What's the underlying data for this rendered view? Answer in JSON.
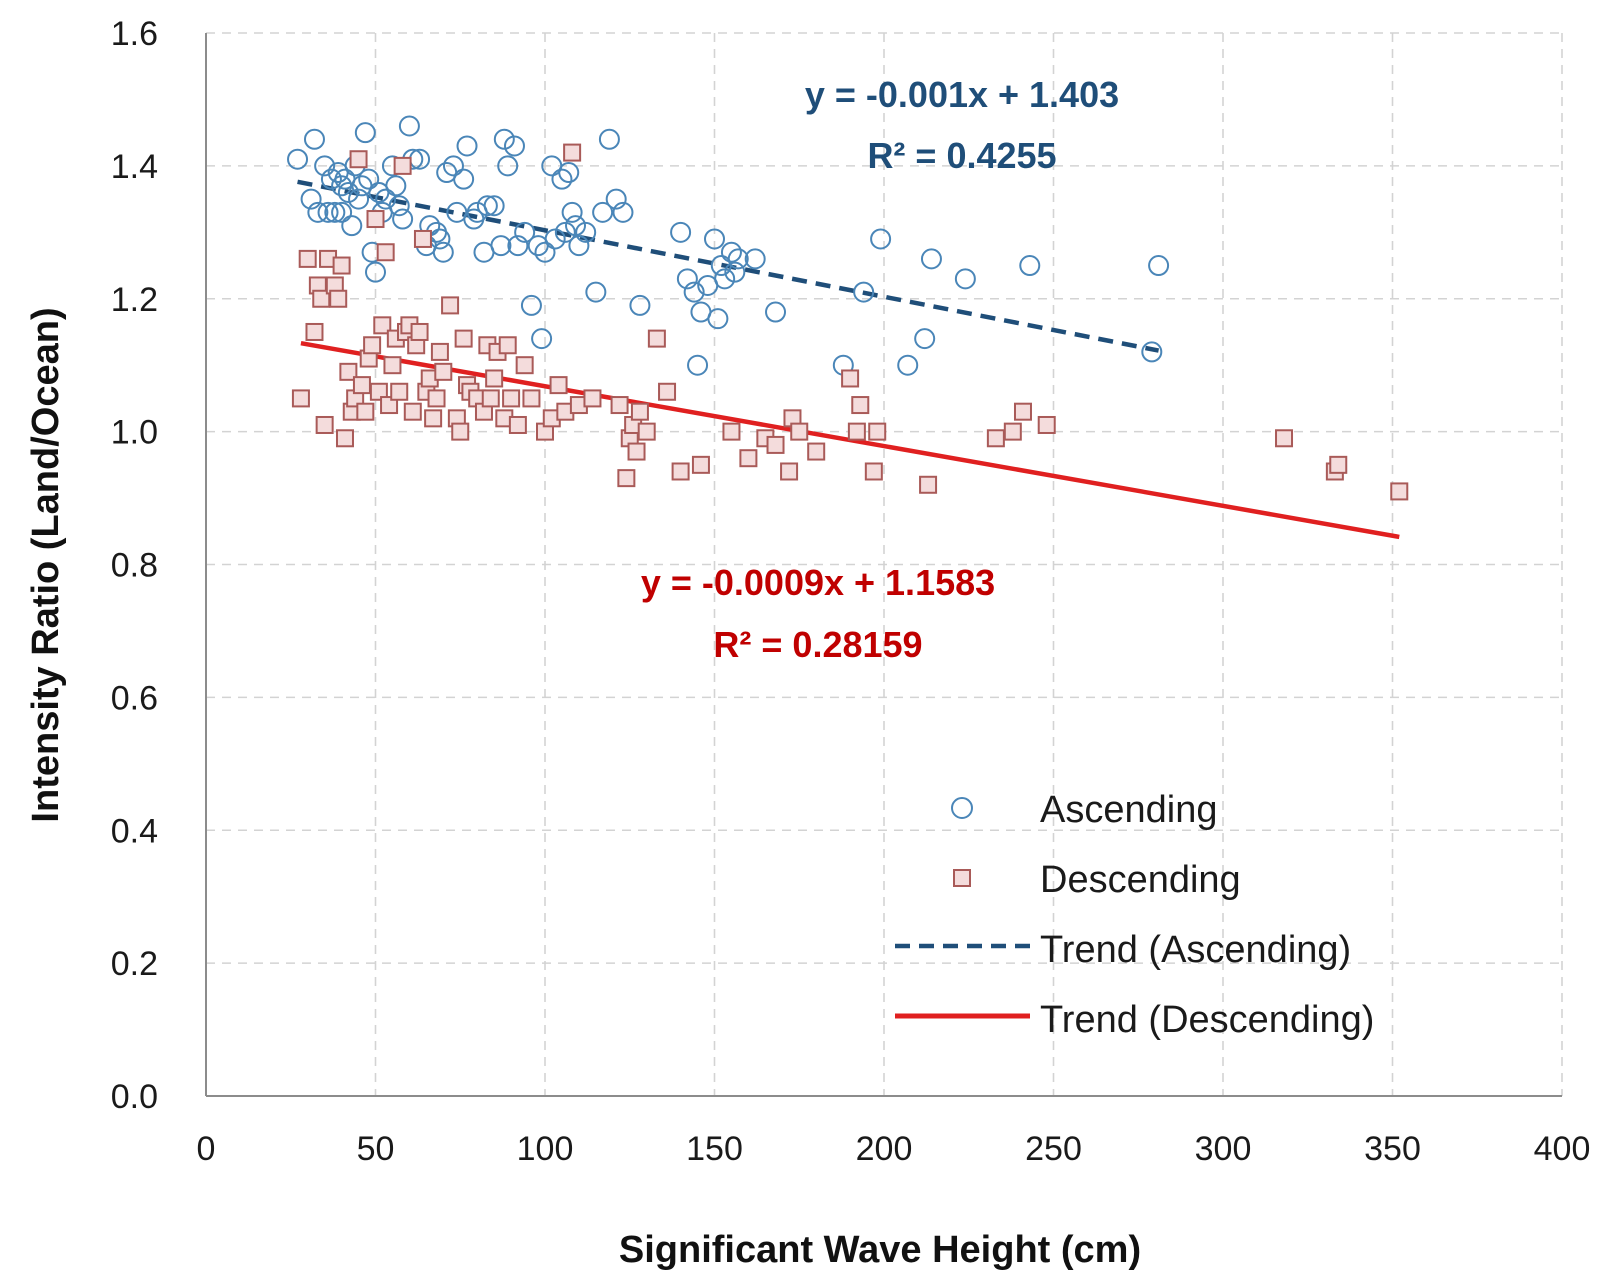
{
  "chart_data": {
    "type": "scatter",
    "title": "",
    "xlabel": "Significant Wave Height (cm)",
    "ylabel": "Intensity Ratio (Land/Ocean)",
    "xlim": [
      0,
      400
    ],
    "ylim": [
      0,
      1.6
    ],
    "xticks": [
      0,
      50,
      100,
      150,
      200,
      250,
      300,
      350,
      400
    ],
    "yticks": [
      0.0,
      0.2,
      0.4,
      0.6,
      0.8,
      1.0,
      1.2,
      1.4,
      1.6
    ],
    "xtick_labels": [
      "0",
      "50",
      "100",
      "150",
      "200",
      "250",
      "300",
      "350",
      "400"
    ],
    "ytick_labels": [
      "0.0",
      "0.2",
      "0.4",
      "0.6",
      "0.8",
      "1.0",
      "1.2",
      "1.4",
      "1.6"
    ],
    "grid": true,
    "legend_position": "bottom-right",
    "series": [
      {
        "name": "Ascending",
        "marker": "circle",
        "color": "#4a86b8",
        "points": [
          [
            27,
            1.41
          ],
          [
            31,
            1.35
          ],
          [
            32,
            1.44
          ],
          [
            33,
            1.33
          ],
          [
            35,
            1.4
          ],
          [
            36,
            1.33
          ],
          [
            37,
            1.38
          ],
          [
            38,
            1.33
          ],
          [
            39,
            1.39
          ],
          [
            40,
            1.37
          ],
          [
            40,
            1.33
          ],
          [
            41,
            1.38
          ],
          [
            42,
            1.36
          ],
          [
            43,
            1.31
          ],
          [
            44,
            1.4
          ],
          [
            45,
            1.35
          ],
          [
            46,
            1.37
          ],
          [
            47,
            1.45
          ],
          [
            48,
            1.38
          ],
          [
            49,
            1.27
          ],
          [
            50,
            1.24
          ],
          [
            51,
            1.36
          ],
          [
            52,
            1.33
          ],
          [
            53,
            1.35
          ],
          [
            55,
            1.4
          ],
          [
            56,
            1.37
          ],
          [
            57,
            1.34
          ],
          [
            58,
            1.32
          ],
          [
            60,
            1.46
          ],
          [
            61,
            1.41
          ],
          [
            63,
            1.41
          ],
          [
            65,
            1.28
          ],
          [
            66,
            1.31
          ],
          [
            68,
            1.3
          ],
          [
            69,
            1.29
          ],
          [
            70,
            1.27
          ],
          [
            71,
            1.39
          ],
          [
            73,
            1.4
          ],
          [
            74,
            1.33
          ],
          [
            76,
            1.38
          ],
          [
            77,
            1.43
          ],
          [
            79,
            1.32
          ],
          [
            80,
            1.33
          ],
          [
            82,
            1.27
          ],
          [
            83,
            1.34
          ],
          [
            85,
            1.34
          ],
          [
            87,
            1.28
          ],
          [
            88,
            1.44
          ],
          [
            89,
            1.4
          ],
          [
            91,
            1.43
          ],
          [
            92,
            1.28
          ],
          [
            94,
            1.3
          ],
          [
            96,
            1.19
          ],
          [
            98,
            1.28
          ],
          [
            99,
            1.14
          ],
          [
            100,
            1.27
          ],
          [
            102,
            1.4
          ],
          [
            103,
            1.29
          ],
          [
            105,
            1.38
          ],
          [
            106,
            1.3
          ],
          [
            107,
            1.39
          ],
          [
            108,
            1.33
          ],
          [
            109,
            1.31
          ],
          [
            110,
            1.28
          ],
          [
            112,
            1.3
          ],
          [
            115,
            1.21
          ],
          [
            117,
            1.33
          ],
          [
            119,
            1.44
          ],
          [
            121,
            1.35
          ],
          [
            123,
            1.33
          ],
          [
            128,
            1.19
          ],
          [
            140,
            1.3
          ],
          [
            142,
            1.23
          ],
          [
            144,
            1.21
          ],
          [
            145,
            1.1
          ],
          [
            146,
            1.18
          ],
          [
            148,
            1.22
          ],
          [
            150,
            1.29
          ],
          [
            151,
            1.17
          ],
          [
            152,
            1.25
          ],
          [
            153,
            1.23
          ],
          [
            155,
            1.27
          ],
          [
            156,
            1.24
          ],
          [
            157,
            1.26
          ],
          [
            162,
            1.26
          ],
          [
            168,
            1.18
          ],
          [
            188,
            1.1
          ],
          [
            194,
            1.21
          ],
          [
            199,
            1.29
          ],
          [
            207,
            1.1
          ],
          [
            212,
            1.14
          ],
          [
            214,
            1.26
          ],
          [
            224,
            1.23
          ],
          [
            243,
            1.25
          ],
          [
            279,
            1.12
          ],
          [
            281,
            1.25
          ]
        ]
      },
      {
        "name": "Descending",
        "marker": "square",
        "color": "#a95a58",
        "points": [
          [
            28,
            1.05
          ],
          [
            30,
            1.26
          ],
          [
            32,
            1.15
          ],
          [
            33,
            1.22
          ],
          [
            34,
            1.2
          ],
          [
            35,
            1.01
          ],
          [
            36,
            1.26
          ],
          [
            38,
            1.22
          ],
          [
            39,
            1.2
          ],
          [
            40,
            1.25
          ],
          [
            41,
            0.99
          ],
          [
            42,
            1.09
          ],
          [
            43,
            1.03
          ],
          [
            44,
            1.05
          ],
          [
            45,
            1.41
          ],
          [
            46,
            1.07
          ],
          [
            47,
            1.03
          ],
          [
            48,
            1.11
          ],
          [
            49,
            1.13
          ],
          [
            50,
            1.32
          ],
          [
            51,
            1.06
          ],
          [
            52,
            1.16
          ],
          [
            53,
            1.27
          ],
          [
            54,
            1.04
          ],
          [
            55,
            1.1
          ],
          [
            56,
            1.14
          ],
          [
            57,
            1.06
          ],
          [
            58,
            1.4
          ],
          [
            59,
            1.15
          ],
          [
            60,
            1.16
          ],
          [
            61,
            1.03
          ],
          [
            62,
            1.13
          ],
          [
            63,
            1.15
          ],
          [
            64,
            1.29
          ],
          [
            65,
            1.06
          ],
          [
            66,
            1.08
          ],
          [
            67,
            1.02
          ],
          [
            68,
            1.05
          ],
          [
            69,
            1.12
          ],
          [
            70,
            1.09
          ],
          [
            72,
            1.19
          ],
          [
            74,
            1.02
          ],
          [
            75,
            1.0
          ],
          [
            76,
            1.14
          ],
          [
            77,
            1.07
          ],
          [
            78,
            1.06
          ],
          [
            80,
            1.05
          ],
          [
            82,
            1.03
          ],
          [
            83,
            1.13
          ],
          [
            84,
            1.05
          ],
          [
            85,
            1.08
          ],
          [
            86,
            1.12
          ],
          [
            88,
            1.02
          ],
          [
            89,
            1.13
          ],
          [
            90,
            1.05
          ],
          [
            92,
            1.01
          ],
          [
            94,
            1.1
          ],
          [
            96,
            1.05
          ],
          [
            100,
            1.0
          ],
          [
            102,
            1.02
          ],
          [
            104,
            1.07
          ],
          [
            106,
            1.03
          ],
          [
            108,
            1.42
          ],
          [
            110,
            1.04
          ],
          [
            114,
            1.05
          ],
          [
            122,
            1.04
          ],
          [
            124,
            0.93
          ],
          [
            125,
            0.99
          ],
          [
            126,
            1.01
          ],
          [
            127,
            0.97
          ],
          [
            128,
            1.03
          ],
          [
            130,
            1.0
          ],
          [
            133,
            1.14
          ],
          [
            136,
            1.06
          ],
          [
            140,
            0.94
          ],
          [
            146,
            0.95
          ],
          [
            155,
            1.0
          ],
          [
            160,
            0.96
          ],
          [
            165,
            0.99
          ],
          [
            168,
            0.98
          ],
          [
            172,
            0.94
          ],
          [
            173,
            1.02
          ],
          [
            175,
            1.0
          ],
          [
            180,
            0.97
          ],
          [
            190,
            1.08
          ],
          [
            192,
            1.0
          ],
          [
            193,
            1.04
          ],
          [
            197,
            0.94
          ],
          [
            198,
            1.0
          ],
          [
            213,
            0.92
          ],
          [
            233,
            0.99
          ],
          [
            238,
            1.0
          ],
          [
            241,
            1.03
          ],
          [
            248,
            1.01
          ],
          [
            318,
            0.99
          ],
          [
            333,
            0.94
          ],
          [
            334,
            0.95
          ],
          [
            352,
            0.91
          ]
        ]
      }
    ],
    "trendlines": [
      {
        "name": "Trend (Ascending)",
        "color": "#1f4e79",
        "style": "dashed",
        "slope": -0.001,
        "intercept": 1.403,
        "x_range": [
          27,
          281
        ],
        "equation": "y = -0.001x + 1.403",
        "r2": "R² = 0.4255"
      },
      {
        "name": "Trend (Descending)",
        "color": "#e02020",
        "style": "solid",
        "slope": -0.0009,
        "intercept": 1.1583,
        "x_range": [
          28,
          352
        ],
        "equation": "y = -0.0009x + 1.1583",
        "r2": "R² = 0.28159"
      }
    ],
    "legend": [
      {
        "label": "Ascending",
        "kind": "circle",
        "color": "#4a86b8"
      },
      {
        "label": "Descending",
        "kind": "square",
        "color": "#a95a58"
      },
      {
        "label": "Trend (Ascending)",
        "kind": "dashed-line",
        "color": "#1f4e79"
      },
      {
        "label": "Trend (Descending)",
        "kind": "solid-line",
        "color": "#e02020"
      }
    ]
  }
}
